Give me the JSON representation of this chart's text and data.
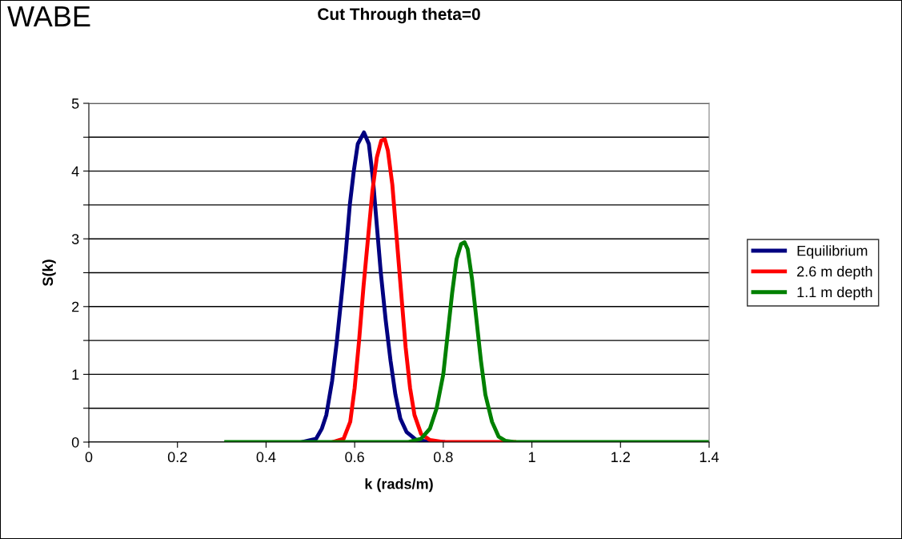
{
  "chart_data": {
    "type": "line",
    "title": "Cut Through theta=0",
    "xlabel": "k (rads/m)",
    "ylabel": "S(k)",
    "annotations": [
      "WABE"
    ],
    "xlim": [
      0,
      1.4
    ],
    "xticks": [
      0,
      0.2,
      0.4,
      0.6,
      0.8,
      1,
      1.2,
      1.4
    ],
    "ylim": [
      0,
      5
    ],
    "yticks": [
      0,
      {
        "value": 0.5,
        "label": null
      },
      1,
      {
        "value": 1.5,
        "label": null
      },
      2,
      {
        "value": 2.5,
        "label": null
      },
      3,
      {
        "value": 3.5,
        "label": null
      },
      4,
      {
        "value": 4.5,
        "label": null
      },
      5
    ],
    "grid": "y",
    "legend": "right",
    "marker": "none",
    "line_style": "solid",
    "series": [
      {
        "name": "Equilibrium",
        "color": "#000080",
        "x": [
          0.48,
          0.513,
          0.526,
          0.536,
          0.549,
          0.56,
          0.571,
          0.58,
          0.589,
          0.598,
          0.607,
          0.621,
          0.632,
          0.641,
          0.65,
          0.659,
          0.67,
          0.681,
          0.692,
          0.703,
          0.717,
          0.739,
          0.775,
          0.8
        ],
        "values": [
          0,
          0.05,
          0.2,
          0.4,
          0.9,
          1.5,
          2.2,
          2.8,
          3.5,
          4.0,
          4.4,
          4.57,
          4.4,
          3.9,
          3.2,
          2.5,
          1.8,
          1.2,
          0.7,
          0.35,
          0.15,
          0.03,
          0,
          0
        ]
      },
      {
        "name": "2.6 m depth",
        "color": "#ff0000",
        "x": [
          0.55,
          0.575,
          0.59,
          0.6,
          0.61,
          0.62,
          0.63,
          0.64,
          0.65,
          0.66,
          0.668,
          0.675,
          0.685,
          0.695,
          0.705,
          0.715,
          0.725,
          0.735,
          0.75,
          0.77,
          0.8,
          0.96
        ],
        "values": [
          0,
          0.05,
          0.3,
          0.8,
          1.5,
          2.3,
          3.0,
          3.7,
          4.2,
          4.45,
          4.47,
          4.3,
          3.8,
          3.0,
          2.2,
          1.4,
          0.8,
          0.4,
          0.12,
          0.03,
          0,
          0
        ]
      },
      {
        "name": "1.1 m depth",
        "color": "#008000",
        "x": [
          0.31,
          0.72,
          0.75,
          0.77,
          0.785,
          0.8,
          0.81,
          0.82,
          0.83,
          0.84,
          0.848,
          0.855,
          0.865,
          0.875,
          0.885,
          0.895,
          0.91,
          0.925,
          0.94,
          0.96,
          1.4
        ],
        "values": [
          0,
          0,
          0.05,
          0.2,
          0.5,
          1.0,
          1.6,
          2.2,
          2.7,
          2.92,
          2.95,
          2.85,
          2.4,
          1.8,
          1.2,
          0.7,
          0.3,
          0.08,
          0.02,
          0,
          0
        ]
      }
    ]
  }
}
